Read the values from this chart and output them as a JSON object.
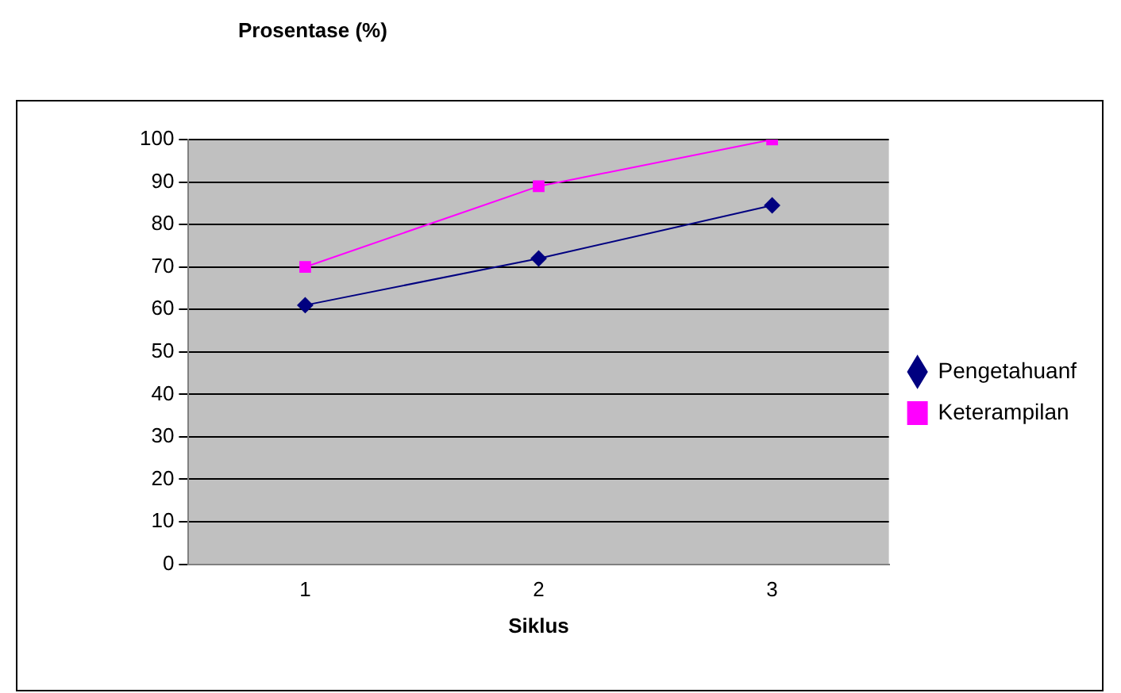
{
  "chart_data": {
    "type": "line",
    "title": "Prosentase (%)",
    "xlabel": "Siklus",
    "categories": [
      "1",
      "2",
      "3"
    ],
    "series": [
      {
        "name": "Pengetahuanf",
        "color": "#000080",
        "marker": "diamond",
        "values": [
          61,
          72,
          84.5
        ]
      },
      {
        "name": "Keterampilan",
        "color": "#ff00ff",
        "marker": "square",
        "values": [
          70,
          89,
          100
        ]
      }
    ],
    "ylim": [
      0,
      100
    ],
    "yticks": [
      0,
      10,
      20,
      30,
      40,
      50,
      60,
      70,
      80,
      90,
      100
    ],
    "grid": "y",
    "legend": "right"
  }
}
